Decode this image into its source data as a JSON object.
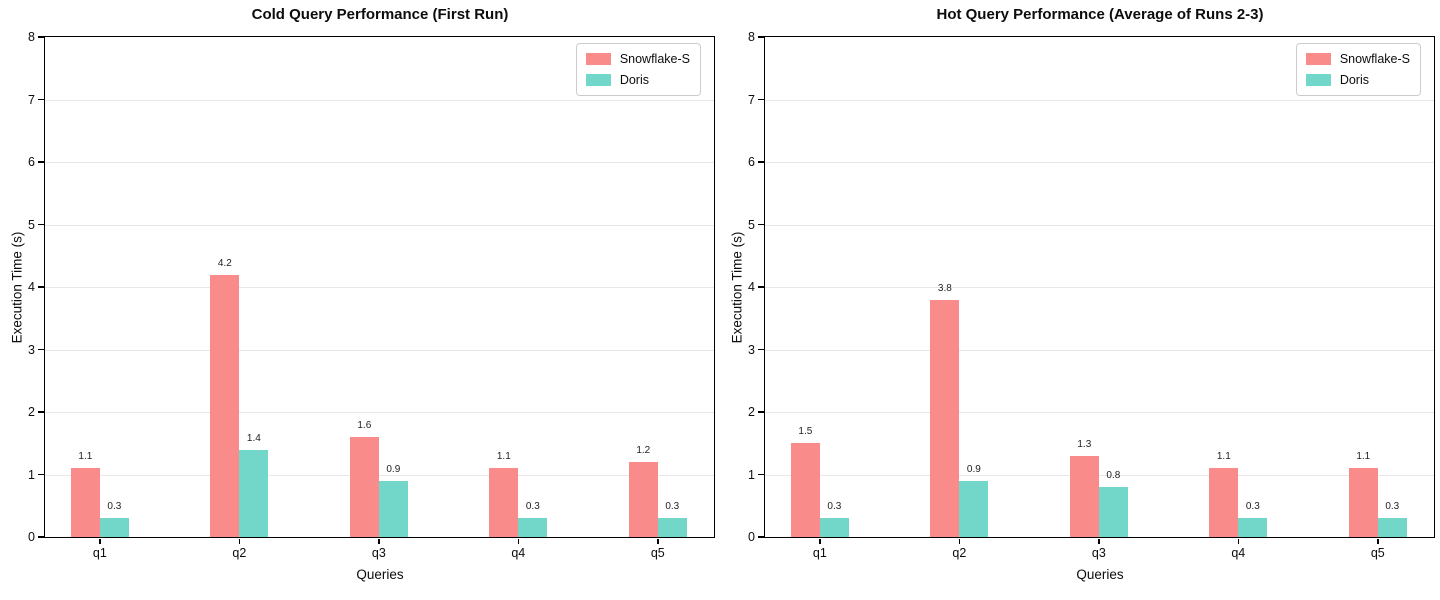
{
  "figure": {
    "background": "#ffffff",
    "spine_color": "#000000",
    "grid_color": "#e8e8e8"
  },
  "chart_data": [
    {
      "type": "bar",
      "title": "Cold Query Performance (First Run)",
      "xlabel": "Queries",
      "ylabel": "Execution Time (s)",
      "categories": [
        "q1",
        "q2",
        "q3",
        "q4",
        "q5"
      ],
      "series": [
        {
          "name": "Snowflake-S",
          "color": "#FA8B8B",
          "values": [
            1.1,
            4.2,
            1.6,
            1.1,
            1.2
          ]
        },
        {
          "name": "Doris",
          "color": "#72D6C9",
          "values": [
            0.3,
            1.4,
            0.9,
            0.3,
            0.3
          ]
        }
      ],
      "ylim": [
        0,
        8
      ],
      "yticks": [
        0,
        1,
        2,
        3,
        4,
        5,
        6,
        7,
        8
      ],
      "grid": true,
      "legend_position": "top-right",
      "bar_labels": true
    },
    {
      "type": "bar",
      "title": "Hot Query Performance (Average of Runs 2-3)",
      "xlabel": "Queries",
      "ylabel": "Execution Time (s)",
      "categories": [
        "q1",
        "q2",
        "q3",
        "q4",
        "q5"
      ],
      "series": [
        {
          "name": "Snowflake-S",
          "color": "#FA8B8B",
          "values": [
            1.5,
            3.8,
            1.3,
            1.1,
            1.1
          ]
        },
        {
          "name": "Doris",
          "color": "#72D6C9",
          "values": [
            0.3,
            0.9,
            0.8,
            0.3,
            0.3
          ]
        }
      ],
      "ylim": [
        0,
        8
      ],
      "yticks": [
        0,
        1,
        2,
        3,
        4,
        5,
        6,
        7,
        8
      ],
      "grid": true,
      "legend_position": "top-right",
      "bar_labels": true
    }
  ]
}
